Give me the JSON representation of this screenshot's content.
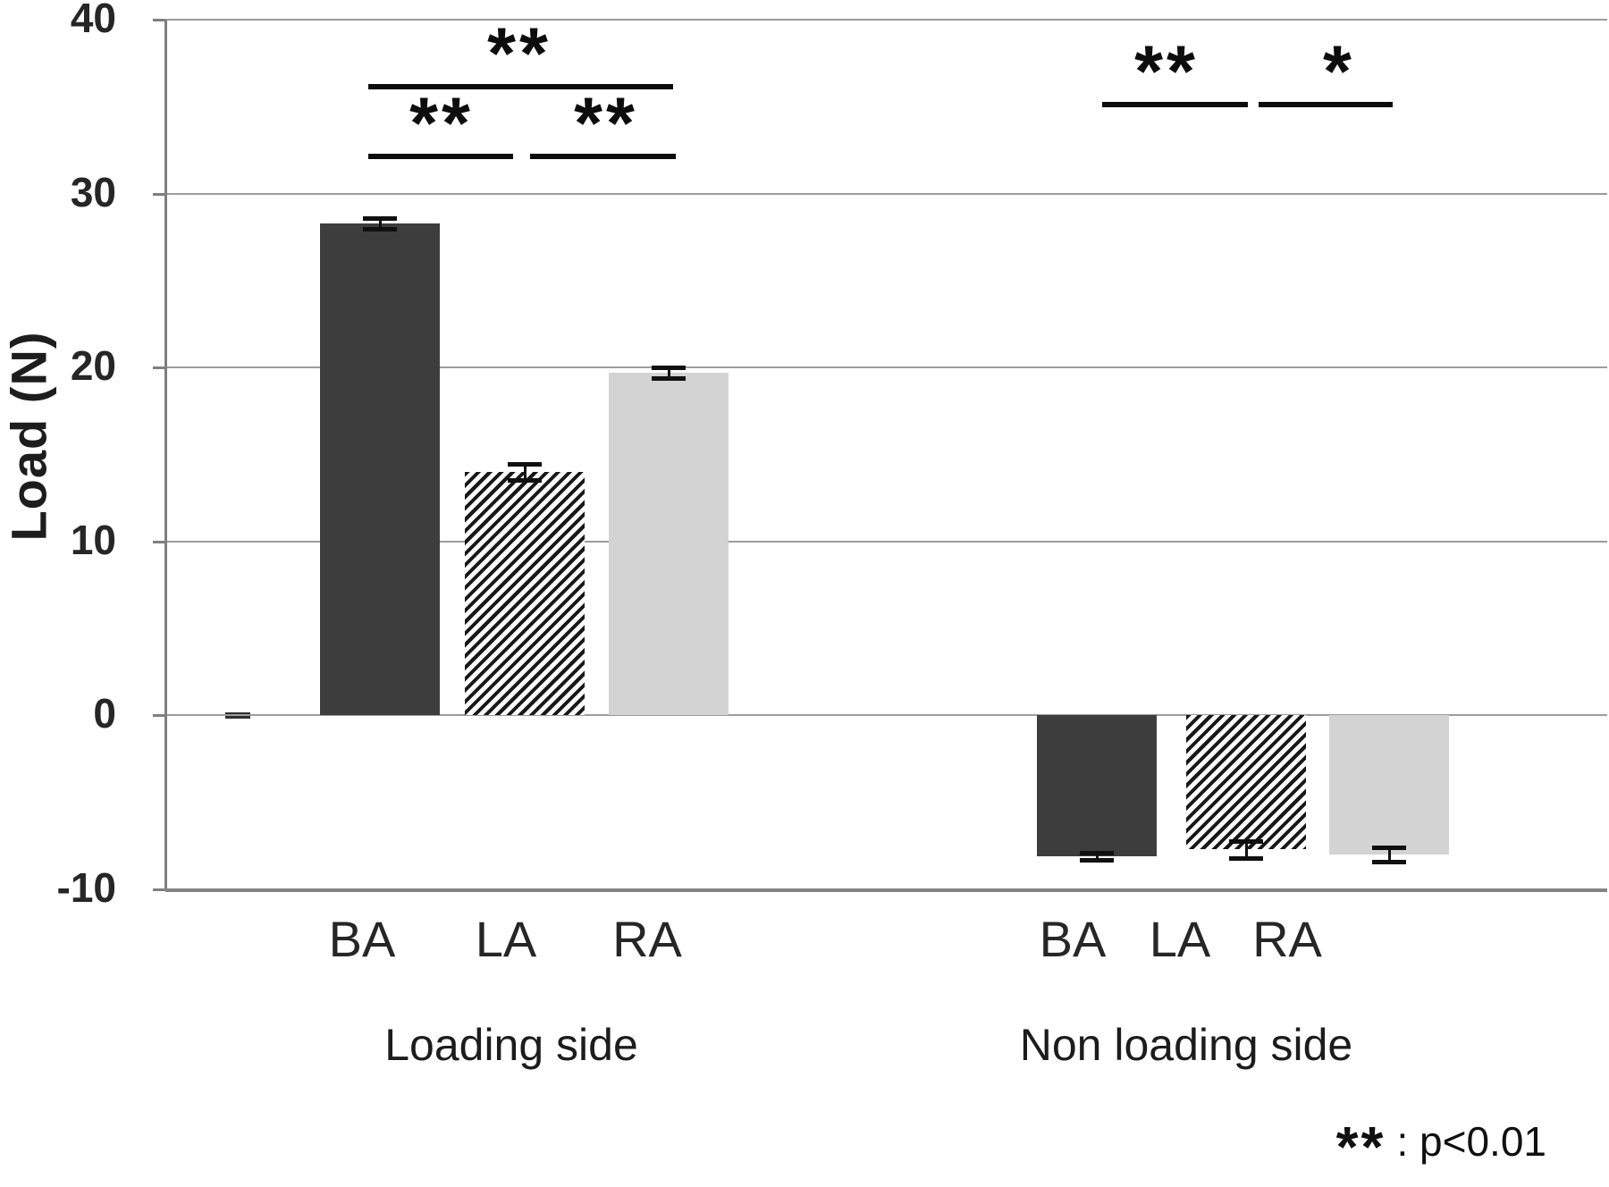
{
  "chart_data": {
    "type": "bar",
    "title": "",
    "xlabel": "",
    "ylabel": "Load (N)",
    "ylim": [
      -10,
      40
    ],
    "yticks": [
      40,
      30,
      20,
      10,
      0,
      -10
    ],
    "grid": "horizontal",
    "legend": "none",
    "groups": [
      {
        "label": "Loading side",
        "categories": [
          "BA",
          "LA",
          "RA"
        ],
        "values": [
          28.3,
          14.0,
          19.7
        ],
        "errors": [
          0.3,
          0.45,
          0.3
        ],
        "styles": [
          "solid-dark",
          "hatched",
          "solid-light"
        ]
      },
      {
        "label": "Non loading side",
        "categories": [
          "BA",
          "LA",
          "RA"
        ],
        "values": [
          -8.1,
          -7.7,
          -8.0
        ],
        "errors": [
          0.2,
          0.5,
          0.4
        ],
        "styles": [
          "solid-dark",
          "hatched",
          "solid-light"
        ]
      }
    ],
    "significance_brackets": [
      {
        "group": "Loading side",
        "from": "BA",
        "to": "RA",
        "label": "**"
      },
      {
        "group": "Loading side",
        "from": "BA",
        "to": "LA",
        "label": "**"
      },
      {
        "group": "Loading side",
        "from": "LA",
        "to": "RA",
        "label": "**"
      },
      {
        "group": "Non loading side",
        "from": "BA",
        "to": "LA",
        "label": "**"
      },
      {
        "group": "Non loading side",
        "from": "LA",
        "to": "RA",
        "label": "*"
      }
    ],
    "note": {
      "symbol": "**",
      "text": ": p<0.01"
    },
    "colors": {
      "solid-dark": "#3d3d3d",
      "solid-light": "#d3d3d3",
      "hatch_foreground": "#181818",
      "hatch_background": "#fcfcfc",
      "grid": "#9c9c9c",
      "axis": "#7f7f7f",
      "bracket": "#0d0d0d"
    }
  }
}
